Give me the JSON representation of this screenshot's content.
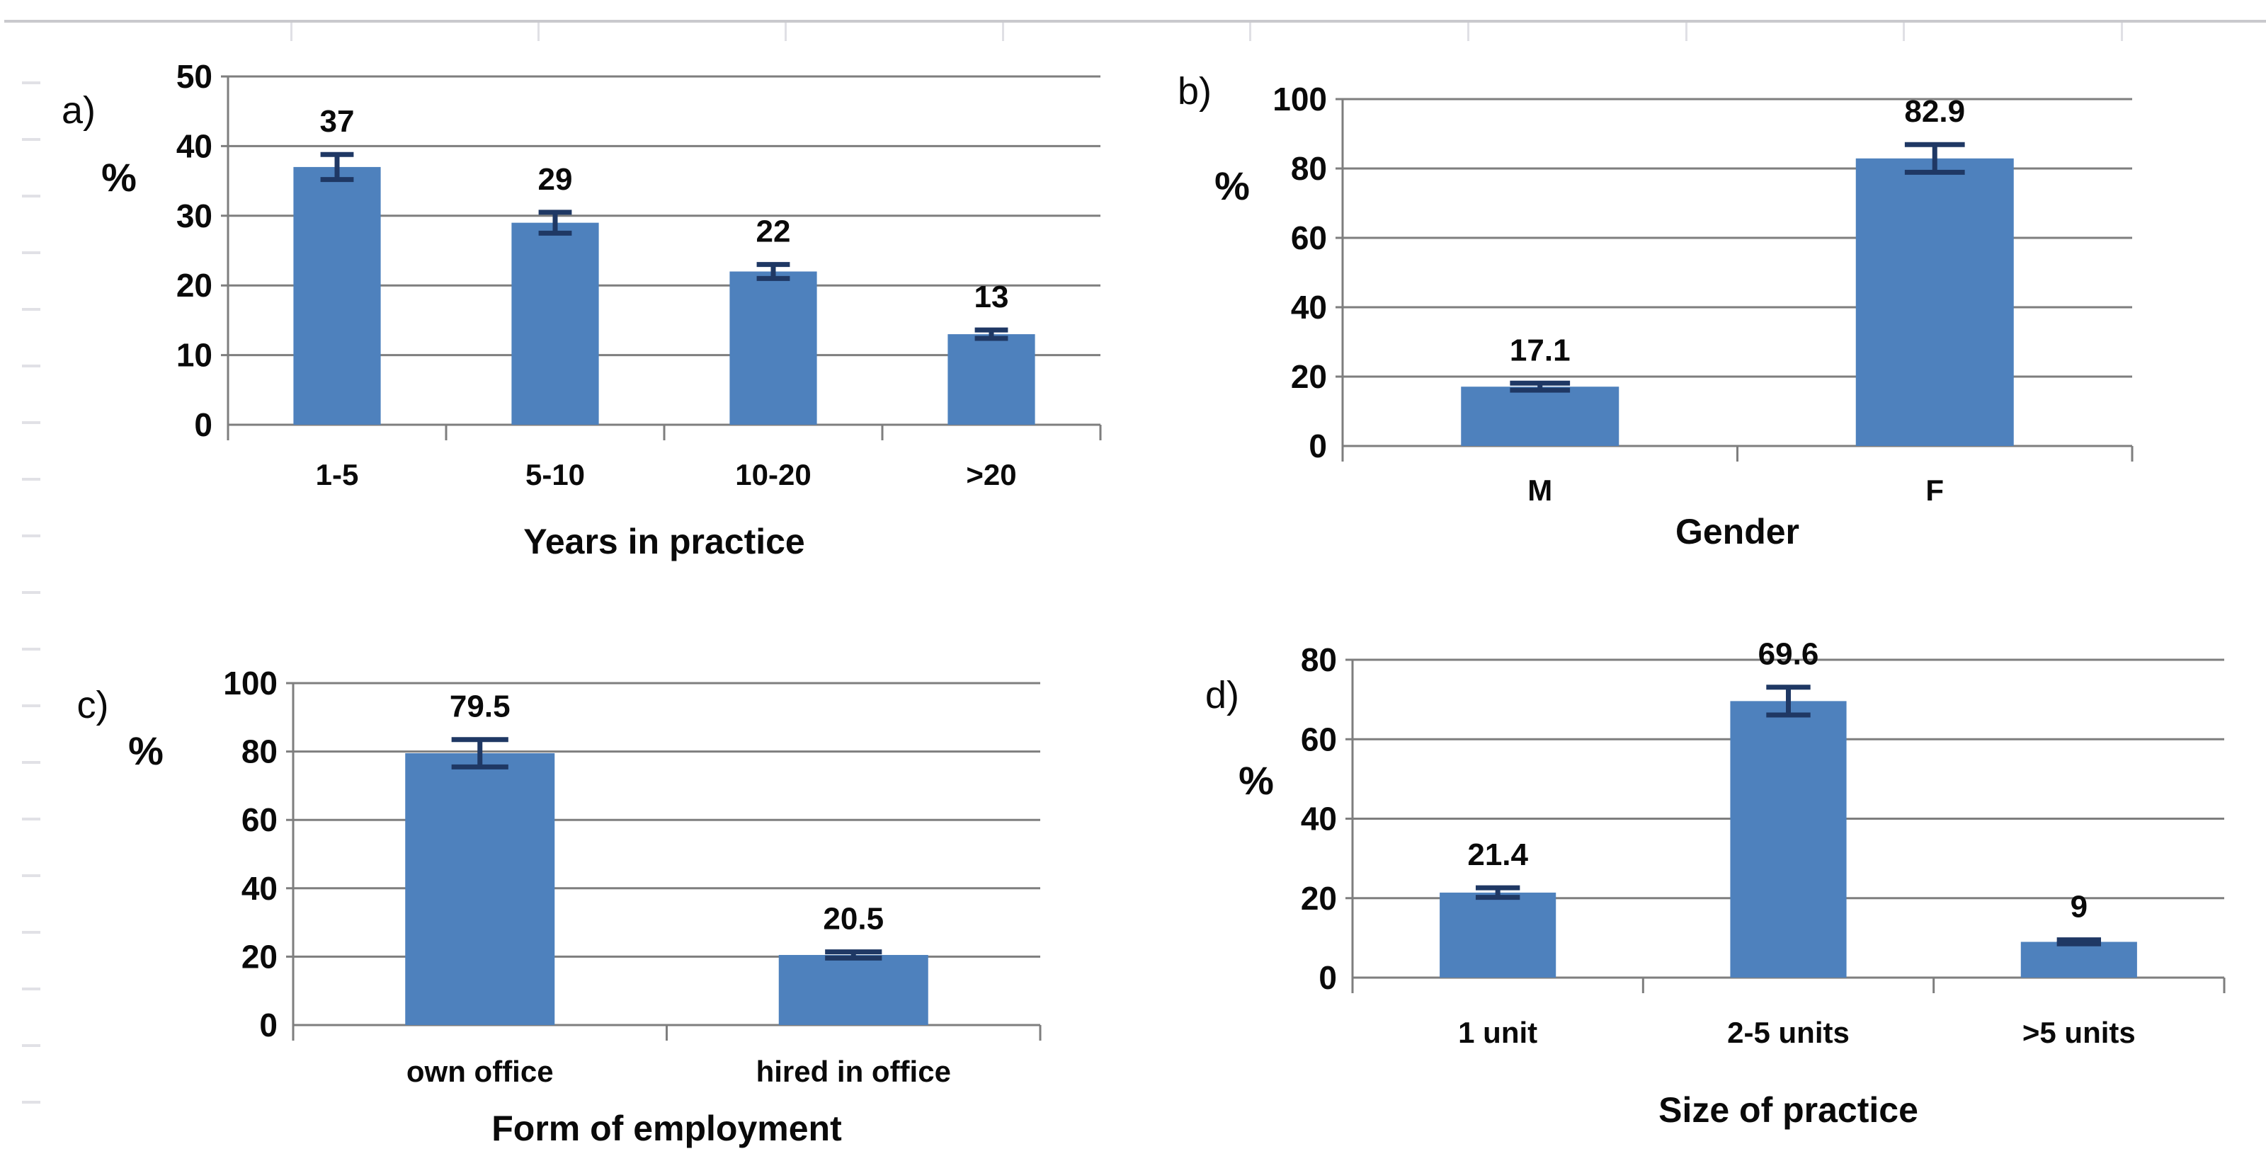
{
  "figure": {
    "kind": "four-panel bar chart figure, scanned page",
    "background_color": "#ffffff",
    "bar_color": "#4E81BD",
    "error_bar_color": "#1F3864",
    "grid_color": "#7E7E7E",
    "text_color": "#0a0a0a",
    "page_edge_rule_color": "#c9c9cd"
  },
  "chart_data": [
    {
      "type": "bar",
      "panel_label": "a)",
      "ylabel": "%",
      "xlabel": "Years in practice",
      "categories": [
        "1-5",
        "5-10",
        "10-20",
        ">20"
      ],
      "values": [
        37,
        29,
        22,
        13
      ],
      "value_labels": [
        "37",
        "29",
        "22",
        "13"
      ],
      "errors": [
        1.8,
        1.5,
        1.0,
        0.6
      ],
      "ylim": [
        0,
        50
      ],
      "ytick_step": 10,
      "grid": true,
      "legend": "none"
    },
    {
      "type": "bar",
      "panel_label": "b)",
      "ylabel": "%",
      "xlabel": "Gender",
      "categories": [
        "M",
        "F"
      ],
      "values": [
        17.1,
        82.9
      ],
      "value_labels": [
        "17.1",
        "82.9"
      ],
      "errors": [
        1.0,
        4.0
      ],
      "ylim": [
        0,
        100
      ],
      "ytick_step": 20,
      "grid": true,
      "legend": "none"
    },
    {
      "type": "bar",
      "panel_label": "c)",
      "ylabel": "%",
      "xlabel": "Form of employment",
      "categories": [
        "own office",
        "hired in office"
      ],
      "values": [
        79.5,
        20.5
      ],
      "value_labels": [
        "79.5",
        "20.5"
      ],
      "errors": [
        4.0,
        0.9
      ],
      "ylim": [
        0,
        100
      ],
      "ytick_step": 20,
      "grid": true,
      "legend": "none"
    },
    {
      "type": "bar",
      "panel_label": "d)",
      "ylabel": "%",
      "xlabel": "Size of practice",
      "categories": [
        "1 unit",
        "2-5 units",
        ">5 units"
      ],
      "values": [
        21.4,
        69.6,
        9
      ],
      "value_labels": [
        "21.4",
        "69.6",
        "9"
      ],
      "errors": [
        1.2,
        3.5,
        0.5
      ],
      "ylim": [
        0,
        80
      ],
      "ytick_step": 20,
      "grid": true,
      "legend": "none"
    }
  ]
}
